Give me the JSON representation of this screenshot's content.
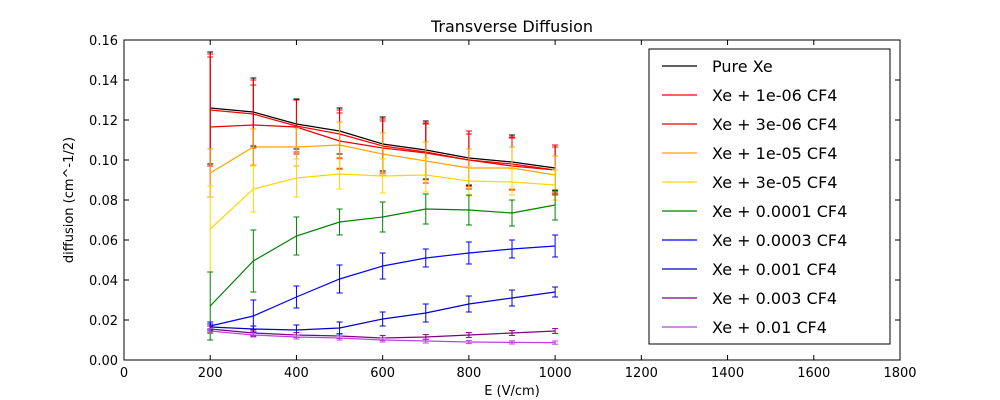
{
  "chart_data": {
    "type": "line",
    "title": "Transverse Diffusion",
    "xlabel": "E (V/cm)",
    "ylabel": "diffusion (cm^-1/2)",
    "xlim": [
      0,
      1800
    ],
    "ylim": [
      0.0,
      0.16
    ],
    "xticks": [
      "0",
      "200",
      "400",
      "600",
      "800",
      "1000",
      "1200",
      "1400",
      "1600",
      "1800"
    ],
    "yticks": [
      "0.00",
      "0.02",
      "0.04",
      "0.06",
      "0.08",
      "0.10",
      "0.12",
      "0.14",
      "0.16"
    ],
    "grid": false,
    "legend_position": "top-right",
    "x": [
      200,
      300,
      400,
      500,
      600,
      700,
      800,
      900,
      1000
    ],
    "series": [
      {
        "name": "Pure Xe",
        "color": "#000000",
        "values": [
          0.126,
          0.124,
          0.118,
          0.1145,
          0.108,
          0.105,
          0.101,
          0.099,
          0.096
        ],
        "errors": [
          0.028,
          0.017,
          0.0125,
          0.0115,
          0.0135,
          0.0145,
          0.0135,
          0.0135,
          0.0115
        ]
      },
      {
        "name": "Xe + 1e-06 CF4",
        "color": "#ff0000",
        "values": [
          0.125,
          0.123,
          0.117,
          0.113,
          0.107,
          0.104,
          0.1,
          0.098,
          0.095
        ],
        "errors": [
          0.028,
          0.017,
          0.013,
          0.012,
          0.0135,
          0.014,
          0.013,
          0.013,
          0.0115
        ]
      },
      {
        "name": "Xe + 3e-06 CF4",
        "color": "#ee0000",
        "values": [
          0.1165,
          0.1175,
          0.1165,
          0.1095,
          0.106,
          0.1035,
          0.1,
          0.097,
          0.095
        ],
        "errors": [
          0.035,
          0.02,
          0.0135,
          0.014,
          0.0135,
          0.015,
          0.0145,
          0.0145,
          0.0125
        ]
      },
      {
        "name": "Xe + 1e-05 CF4",
        "color": "#ffa500",
        "values": [
          0.0935,
          0.1065,
          0.1065,
          0.1075,
          0.103,
          0.0995,
          0.096,
          0.096,
          0.0925
        ],
        "errors": [
          0.012,
          0.009,
          0.0095,
          0.0115,
          0.0105,
          0.0095,
          0.0095,
          0.0105,
          0.0095
        ]
      },
      {
        "name": "Xe + 3e-05 CF4",
        "color": "#ffd700",
        "values": [
          0.0655,
          0.0855,
          0.091,
          0.093,
          0.092,
          0.0925,
          0.0895,
          0.089,
          0.0875
        ],
        "errors": [
          0.0215,
          0.0115,
          0.0095,
          0.0075,
          0.0085,
          0.0085,
          0.0075,
          0.0065,
          0.0075
        ]
      },
      {
        "name": "Xe + 0.0001 CF4",
        "color": "#008000",
        "values": [
          0.027,
          0.0495,
          0.062,
          0.069,
          0.0715,
          0.0755,
          0.075,
          0.0735,
          0.0775
        ],
        "errors": [
          0.017,
          0.0155,
          0.0095,
          0.0065,
          0.0075,
          0.0075,
          0.0075,
          0.0065,
          0.0075
        ]
      },
      {
        "name": "Xe + 0.0003 CF4",
        "color": "#0000ff",
        "values": [
          0.017,
          0.022,
          0.0315,
          0.0405,
          0.047,
          0.051,
          0.0535,
          0.0555,
          0.057
        ],
        "errors": [
          0.002,
          0.008,
          0.0055,
          0.007,
          0.0065,
          0.0045,
          0.0055,
          0.0045,
          0.0055
        ]
      },
      {
        "name": "Xe + 0.001 CF4",
        "color": "#0000cc",
        "values": [
          0.0165,
          0.0155,
          0.015,
          0.016,
          0.0205,
          0.0235,
          0.028,
          0.031,
          0.034
        ],
        "errors": [
          0.0015,
          0.0015,
          0.0025,
          0.003,
          0.0035,
          0.0045,
          0.004,
          0.004,
          0.0025
        ]
      },
      {
        "name": "Xe + 0.003 CF4",
        "color": "#800080",
        "values": [
          0.0155,
          0.0135,
          0.0125,
          0.012,
          0.011,
          0.0115,
          0.0125,
          0.0135,
          0.0145
        ],
        "errors": [
          0.0015,
          0.0015,
          0.0012,
          0.0012,
          0.0012,
          0.0012,
          0.0012,
          0.0012,
          0.0012
        ]
      },
      {
        "name": "Xe + 0.01 CF4",
        "color": "#bb44dd",
        "values": [
          0.0145,
          0.0125,
          0.0115,
          0.011,
          0.01,
          0.0095,
          0.009,
          0.0088,
          0.0087
        ],
        "errors": [
          0.0012,
          0.001,
          0.001,
          0.001,
          0.001,
          0.001,
          0.0008,
          0.0008,
          0.0008
        ]
      }
    ]
  }
}
